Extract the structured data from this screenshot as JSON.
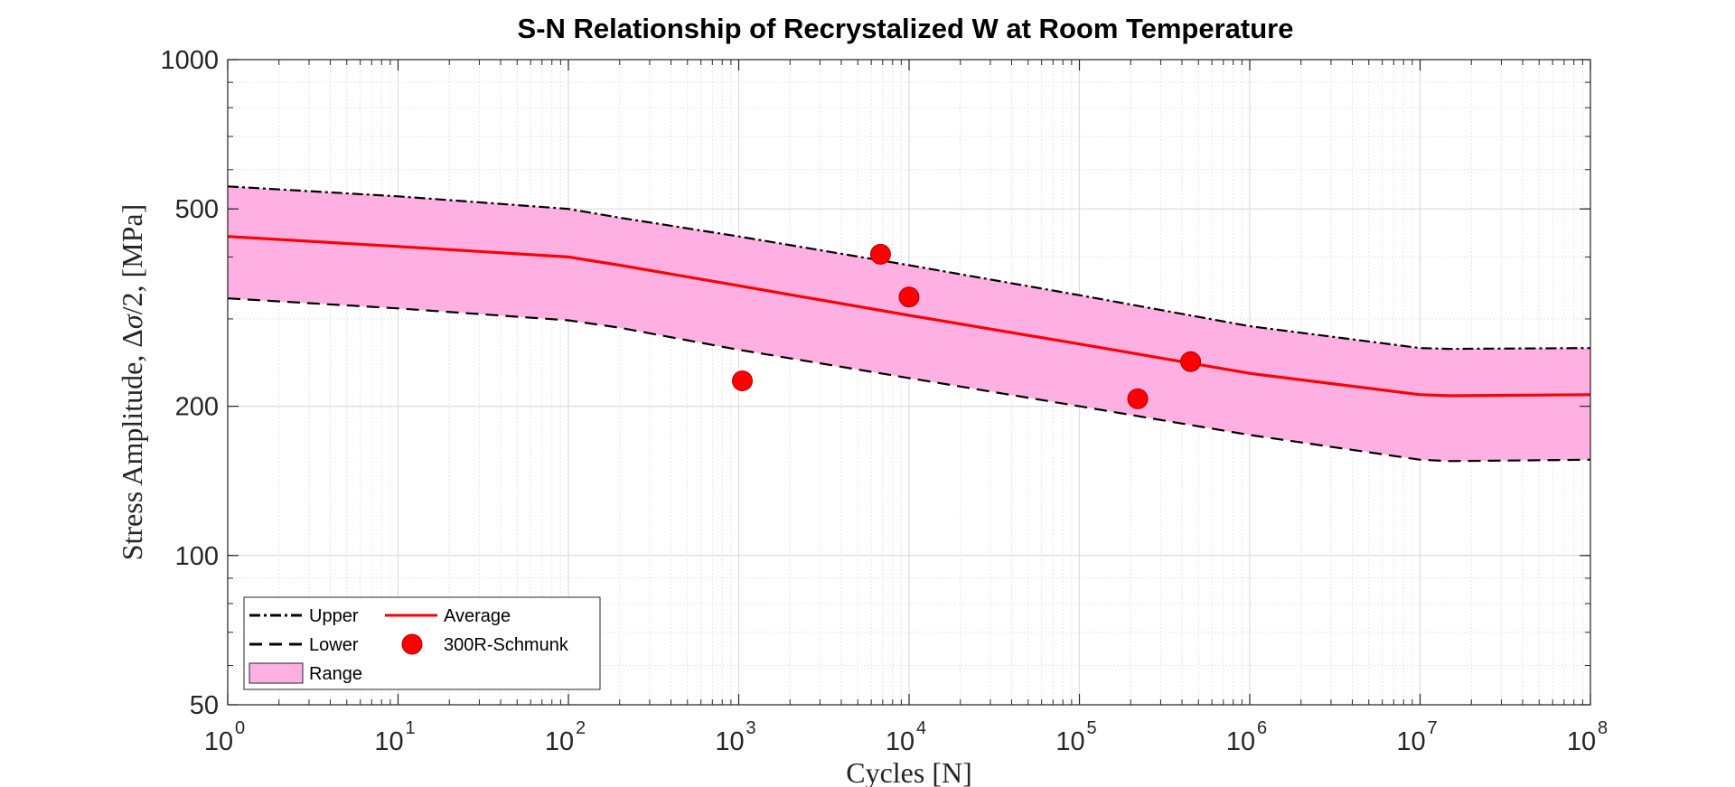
{
  "chart_data": {
    "type": "line",
    "title": "S-N Relationship of Recrystalized W at Room Temperature",
    "xlabel": "Cycles [N]",
    "ylabel_text": "Stress Amplitude, Δ",
    "ylabel_sigma": "σ",
    "ylabel_rest": "/2, [MPa]",
    "x_scale": "log",
    "y_scale": "log",
    "xlim": [
      1,
      100000000
    ],
    "ylim": [
      50,
      1000
    ],
    "x_ticks": [
      {
        "value": 1,
        "base": "10",
        "exp": "0"
      },
      {
        "value": 10,
        "base": "10",
        "exp": "1"
      },
      {
        "value": 100,
        "base": "10",
        "exp": "2"
      },
      {
        "value": 1000,
        "base": "10",
        "exp": "3"
      },
      {
        "value": 10000,
        "base": "10",
        "exp": "4"
      },
      {
        "value": 100000,
        "base": "10",
        "exp": "5"
      },
      {
        "value": 1000000,
        "base": "10",
        "exp": "6"
      },
      {
        "value": 10000000,
        "base": "10",
        "exp": "7"
      },
      {
        "value": 100000000,
        "base": "10",
        "exp": "8"
      }
    ],
    "y_ticks": [
      {
        "value": 50,
        "label": "50"
      },
      {
        "value": 100,
        "label": "100"
      },
      {
        "value": 200,
        "label": "200"
      },
      {
        "value": 500,
        "label": "500"
      },
      {
        "value": 1000,
        "label": "1000"
      }
    ],
    "grid": true,
    "minor_grid": true,
    "legend_position": "bottom-left",
    "series": [
      {
        "name": "Upper",
        "style": "dash-dot",
        "color": "#000000",
        "x": [
          1,
          10,
          100,
          200,
          1000,
          10000,
          100000,
          1000000,
          10000000,
          15000000,
          100000000
        ],
        "y": [
          555,
          530,
          500,
          480,
          440,
          385,
          335,
          290,
          262,
          261,
          262
        ]
      },
      {
        "name": "Lower",
        "style": "dashed",
        "color": "#000000",
        "x": [
          1,
          10,
          100,
          200,
          1000,
          10000,
          100000,
          1000000,
          10000000,
          15000000,
          100000000
        ],
        "y": [
          330,
          315,
          298,
          288,
          260,
          228,
          200,
          175,
          156,
          155,
          156
        ]
      },
      {
        "name": "Average",
        "style": "solid",
        "color": "#ff0000",
        "x": [
          1,
          10,
          100,
          200,
          1000,
          10000,
          100000,
          1000000,
          10000000,
          15000000,
          100000000
        ],
        "y": [
          440,
          420,
          400,
          385,
          350,
          305,
          267,
          233,
          211,
          210,
          211
        ]
      },
      {
        "name": "300R-Schmunk",
        "style": "markers",
        "color": "#ff0000",
        "x": [
          1050,
          6800,
          10000,
          220000,
          450000
        ],
        "y": [
          225,
          405,
          332,
          207,
          246
        ]
      }
    ],
    "range_fill": {
      "name": "Range",
      "color": "#ffb0e3"
    }
  }
}
